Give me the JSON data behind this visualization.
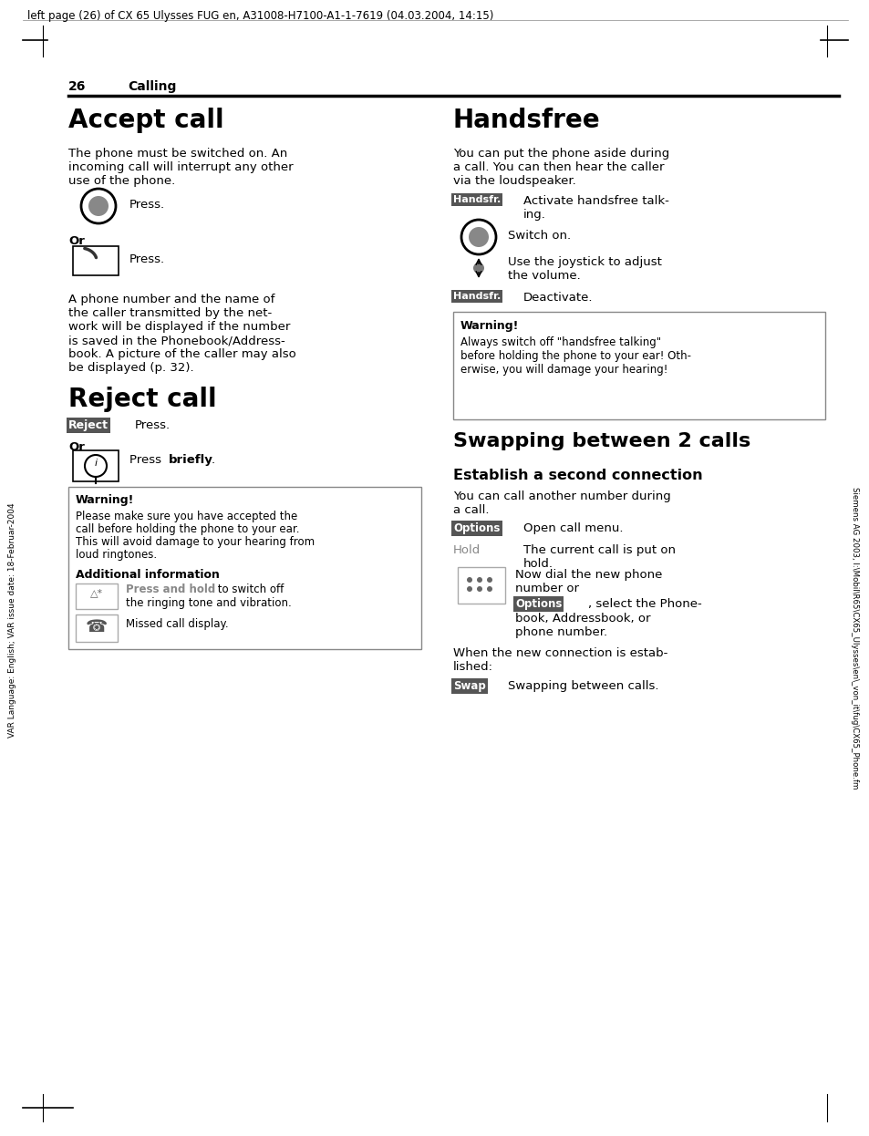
{
  "page_header": "left page (26) of CX 65 Ulysses FUG en, A31008-H7100-A1-1-7619 (04.03.2004, 14:15)",
  "sidebar": "VAR Language: English; VAR issue date: 18-Februar-2004",
  "footer": "Siemens AG 2003, I:\\Mobil\\R65\\CX65_Ulysses\\en\\_von_it\\fug\\CX65_Phone.fm",
  "page_num": "26",
  "section": "Calling",
  "bg": "#ffffff",
  "fg": "#000000",
  "gray": "#808080",
  "badge_bg": "#555555",
  "badge_fg": "#ffffff",
  "warn_border": "#888888"
}
